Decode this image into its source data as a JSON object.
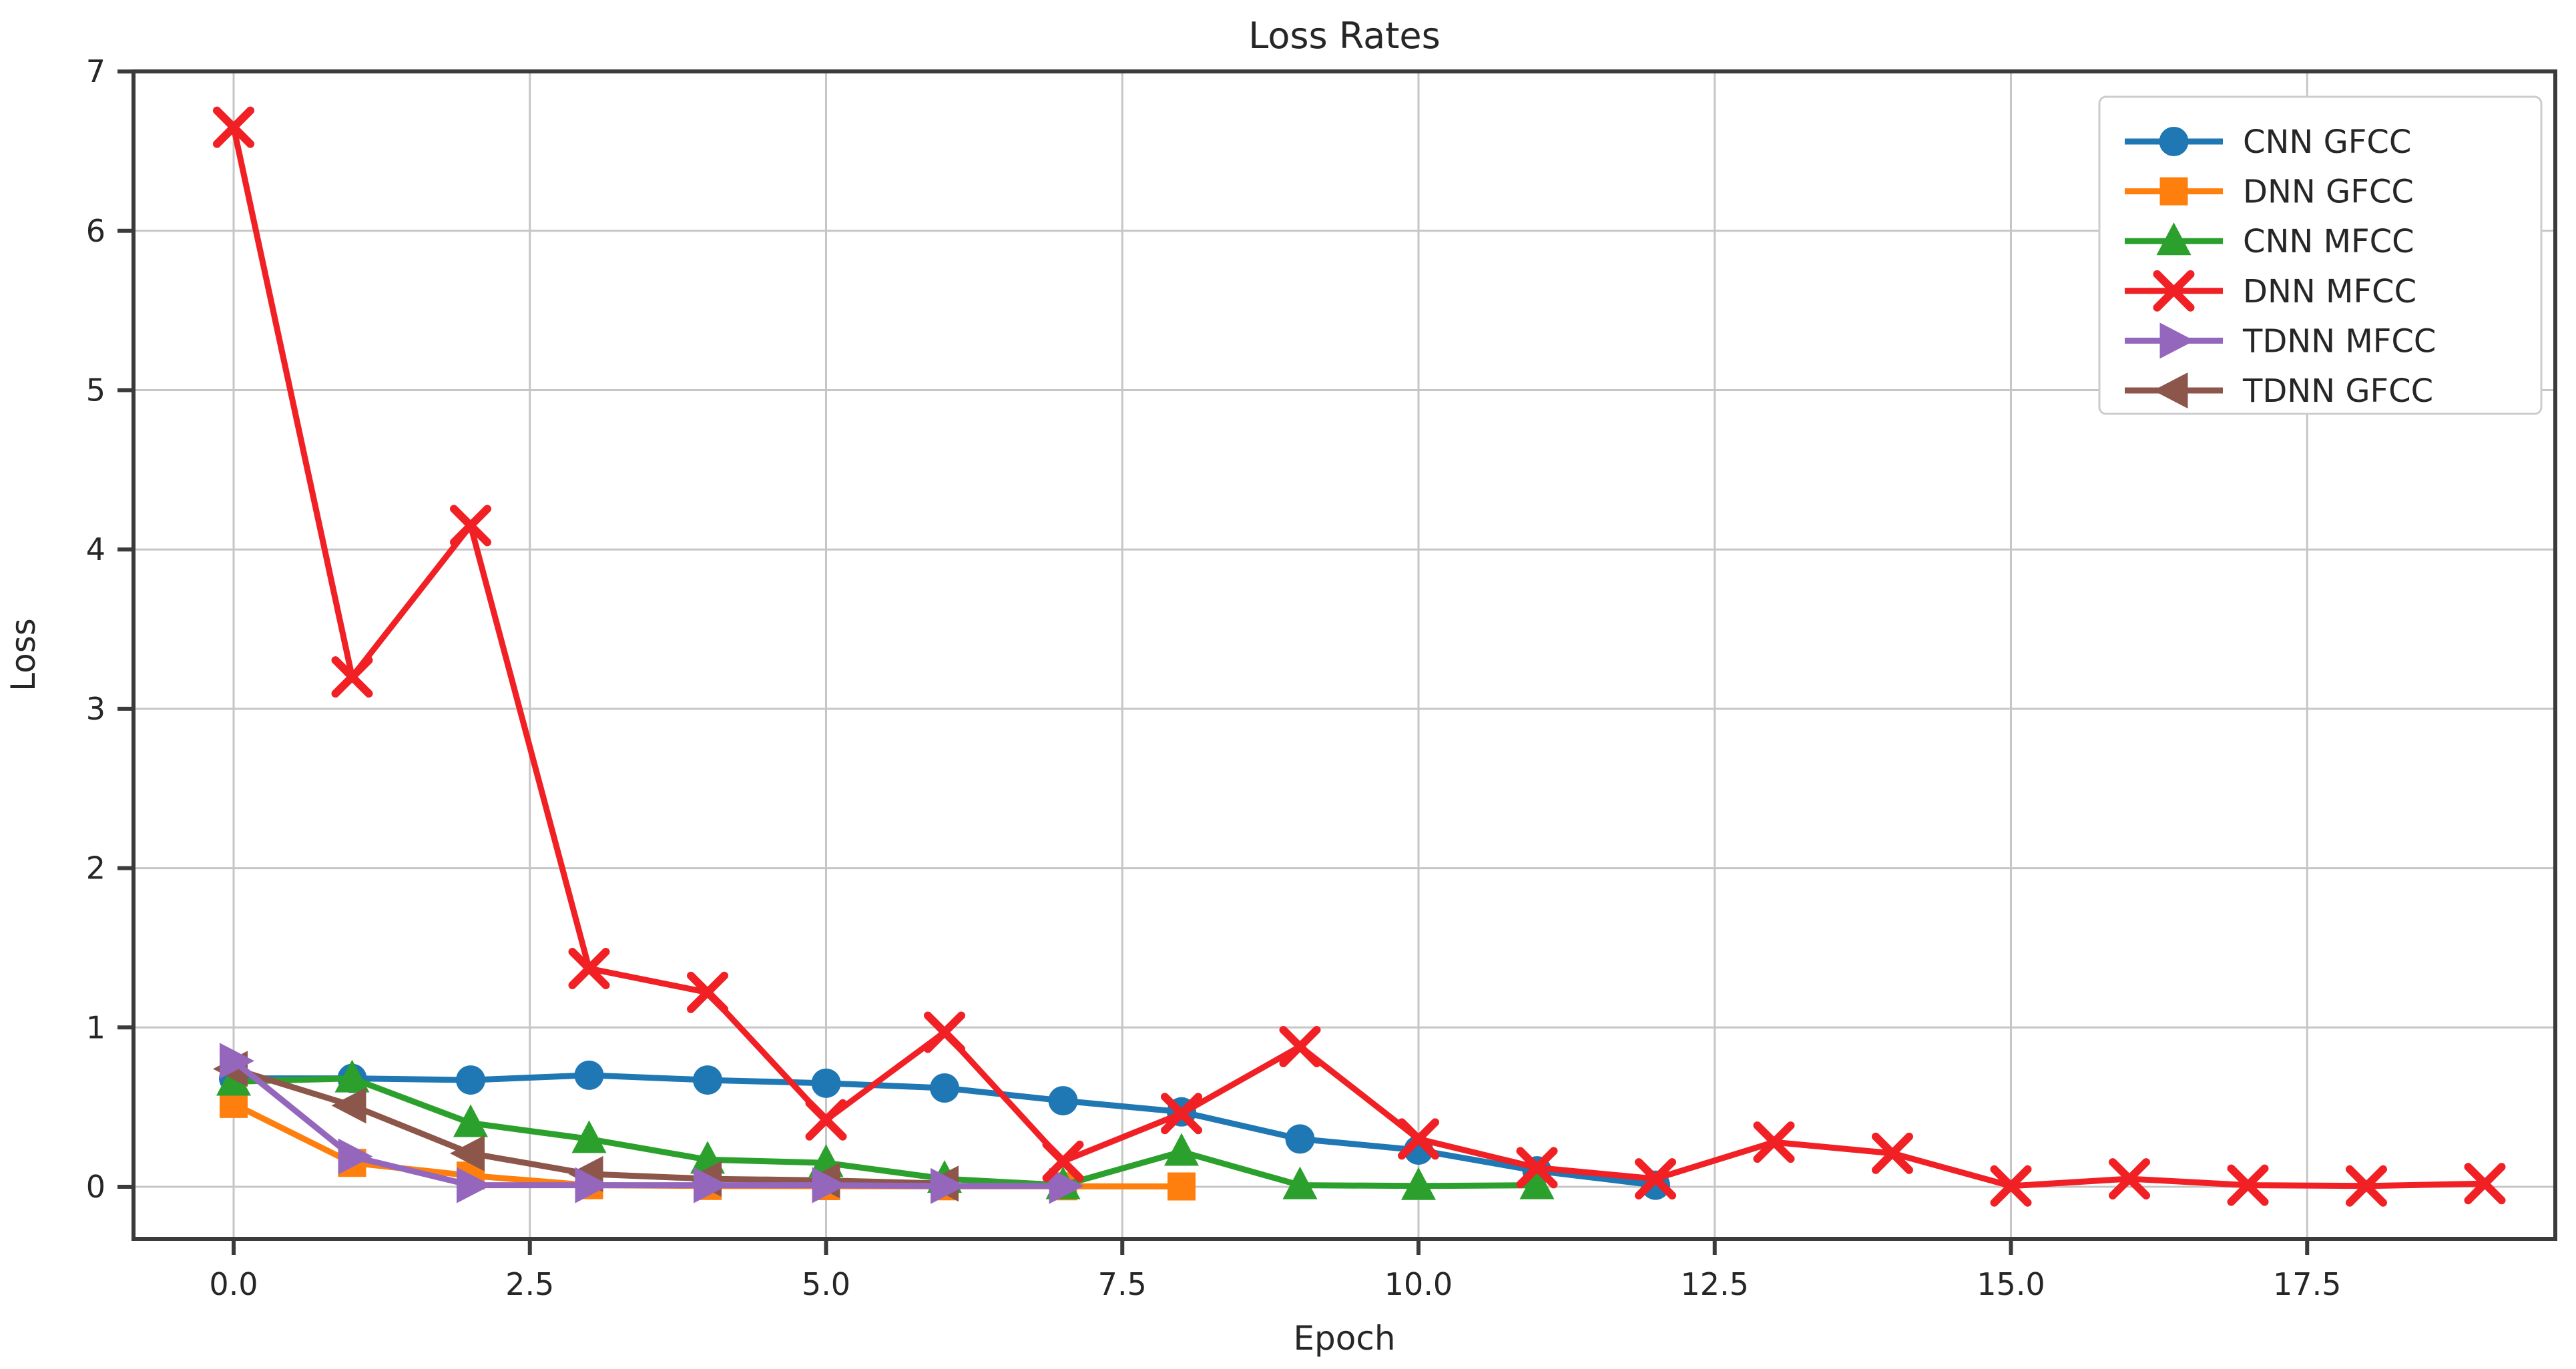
{
  "figure": {
    "title": "Loss Rates",
    "xlabel": "Epoch",
    "ylabel": "Loss"
  },
  "colors": {
    "background": "#ffffff",
    "grid": "#c6c6c6",
    "spine": "#3b3b3b",
    "text": "#262626",
    "legend_border": "#cccccc",
    "legend_bg": "#ffffff"
  },
  "axes": {
    "x_tick_labels": [
      "0.0",
      "2.5",
      "5.0",
      "7.5",
      "10.0",
      "12.5",
      "15.0",
      "17.5"
    ],
    "x_tick_values": [
      0,
      2.5,
      5,
      7.5,
      10,
      12.5,
      15,
      17.5
    ],
    "y_tick_labels": [
      "0",
      "1",
      "2",
      "3",
      "4",
      "5",
      "6",
      "7"
    ],
    "y_tick_values": [
      0,
      1,
      2,
      3,
      4,
      5,
      6,
      7
    ]
  },
  "chart_data": {
    "type": "line",
    "title": "Loss Rates",
    "xlabel": "Epoch",
    "ylabel": "Loss",
    "xlim": [
      -0.85,
      19.6
    ],
    "ylim": [
      -0.32,
      7.0
    ],
    "grid": true,
    "legend_position": "upper right",
    "series": [
      {
        "name": "CNN GFCC",
        "color": "#1f77b4",
        "marker": "circle",
        "x": [
          0,
          1,
          2,
          3,
          4,
          5,
          6,
          7,
          8,
          9,
          10,
          11,
          12
        ],
        "y": [
          0.68,
          0.68,
          0.67,
          0.7,
          0.67,
          0.65,
          0.62,
          0.54,
          0.47,
          0.3,
          0.23,
          0.1,
          0.01
        ]
      },
      {
        "name": "DNN GFCC",
        "color": "#ff7f0e",
        "marker": "square",
        "x": [
          0,
          1,
          2,
          3,
          4,
          5,
          6,
          7,
          8
        ],
        "y": [
          0.52,
          0.15,
          0.07,
          0.01,
          0.005,
          0.004,
          0.003,
          0.003,
          0.002
        ]
      },
      {
        "name": "CNN MFCC",
        "color": "#2ca02c",
        "marker": "triangle-up",
        "x": [
          0,
          1,
          2,
          3,
          4,
          5,
          6,
          7,
          8,
          9,
          10,
          11
        ],
        "y": [
          0.66,
          0.68,
          0.4,
          0.3,
          0.17,
          0.15,
          0.05,
          0.01,
          0.22,
          0.01,
          0.005,
          0.01
        ]
      },
      {
        "name": "DNN MFCC",
        "color": "#f02024",
        "marker": "x",
        "x": [
          0,
          1,
          2,
          3,
          4,
          5,
          6,
          7,
          8,
          9,
          10,
          11,
          12,
          13,
          14,
          15,
          16,
          17,
          18,
          19
        ],
        "y": [
          6.65,
          3.2,
          4.15,
          1.37,
          1.22,
          0.42,
          0.97,
          0.16,
          0.46,
          0.88,
          0.3,
          0.12,
          0.05,
          0.28,
          0.21,
          0.005,
          0.05,
          0.01,
          0.005,
          0.02
        ]
      },
      {
        "name": "TDNN MFCC",
        "color": "#9467bd",
        "marker": "triangle-right",
        "x": [
          0,
          1,
          2,
          3,
          4,
          5,
          6,
          7
        ],
        "y": [
          0.79,
          0.19,
          0.01,
          0.01,
          0.01,
          0.01,
          0.005,
          0.005
        ]
      },
      {
        "name": "TDNN GFCC",
        "color": "#8c564b",
        "marker": "triangle-left",
        "x": [
          0,
          1,
          2,
          3,
          4,
          5,
          6
        ],
        "y": [
          0.74,
          0.51,
          0.21,
          0.08,
          0.05,
          0.04,
          0.02
        ]
      }
    ]
  }
}
